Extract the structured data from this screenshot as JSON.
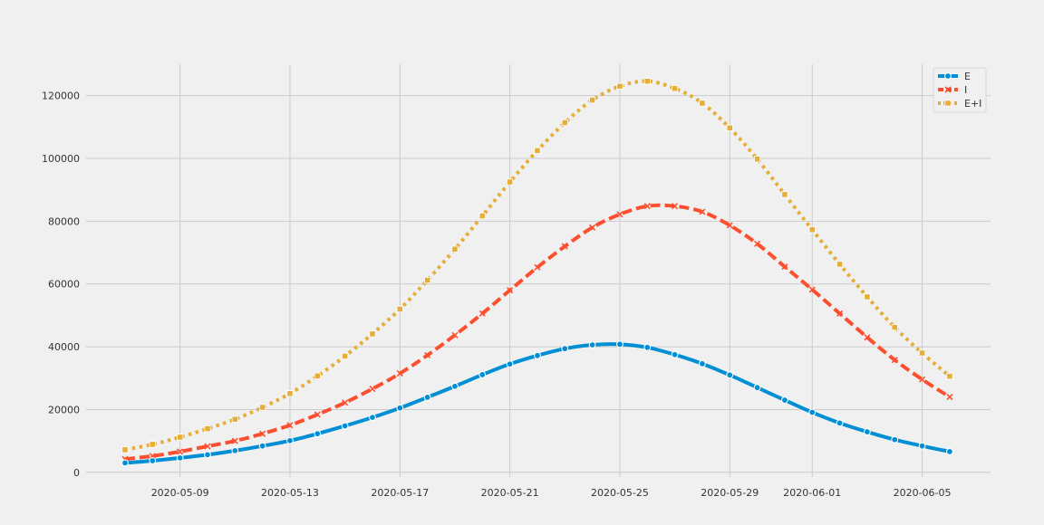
{
  "chart_data": {
    "type": "line",
    "title": "",
    "xlabel": "",
    "ylabel": "",
    "x": [
      "2020-05-07",
      "2020-05-08",
      "2020-05-09",
      "2020-05-10",
      "2020-05-11",
      "2020-05-12",
      "2020-05-13",
      "2020-05-14",
      "2020-05-15",
      "2020-05-16",
      "2020-05-17",
      "2020-05-18",
      "2020-05-19",
      "2020-05-20",
      "2020-05-21",
      "2020-05-22",
      "2020-05-23",
      "2020-05-24",
      "2020-05-25",
      "2020-05-26",
      "2020-05-27",
      "2020-05-28",
      "2020-05-29",
      "2020-05-30",
      "2020-05-31",
      "2020-06-01",
      "2020-06-02",
      "2020-06-03",
      "2020-06-04",
      "2020-06-05",
      "2020-06-06"
    ],
    "x_ticks": [
      "2020-05-09",
      "2020-05-13",
      "2020-05-17",
      "2020-05-21",
      "2020-05-25",
      "2020-05-29",
      "2020-06-01",
      "2020-06-05"
    ],
    "ylim": [
      -1500,
      130000
    ],
    "y_ticks": [
      0,
      20000,
      40000,
      60000,
      80000,
      100000,
      120000
    ],
    "y_tick_labels": [
      "0",
      "20000",
      "40000",
      "60000",
      "80000",
      "100000",
      "120000"
    ],
    "grid": true,
    "legend_position": "top-right",
    "series": [
      {
        "name": "E",
        "color": "#008fd5",
        "dash": "solid",
        "marker": "circle",
        "values": [
          3000,
          3700,
          4600,
          5600,
          6900,
          8400,
          10100,
          12300,
          14800,
          17500,
          20500,
          23900,
          27400,
          31100,
          34500,
          37200,
          39400,
          40600,
          40800,
          39800,
          37500,
          34600,
          31000,
          27000,
          23000,
          19100,
          15700,
          12900,
          10400,
          8400,
          6600
        ]
      },
      {
        "name": "I",
        "color": "#fc4f30",
        "dash": "dashed",
        "marker": "x",
        "values": [
          4200,
          5200,
          6600,
          8300,
          10000,
          12300,
          15000,
          18400,
          22200,
          26600,
          31500,
          37300,
          43700,
          50600,
          58000,
          65300,
          72000,
          78000,
          82200,
          84800,
          84800,
          83000,
          78700,
          72800,
          65500,
          58200,
          50600,
          43000,
          35800,
          29600,
          24000
        ]
      },
      {
        "name": "E+I",
        "color": "#e5ae38",
        "dash": "dotted",
        "marker": "square",
        "values": [
          7200,
          8900,
          11200,
          13900,
          16900,
          20700,
          25100,
          30700,
          37000,
          44100,
          52000,
          61200,
          71100,
          81700,
          92500,
          102500,
          111400,
          118600,
          123000,
          124600,
          122300,
          117600,
          109700,
          99800,
          88500,
          77300,
          66300,
          55900,
          46200,
          38000,
          30600
        ]
      }
    ]
  }
}
